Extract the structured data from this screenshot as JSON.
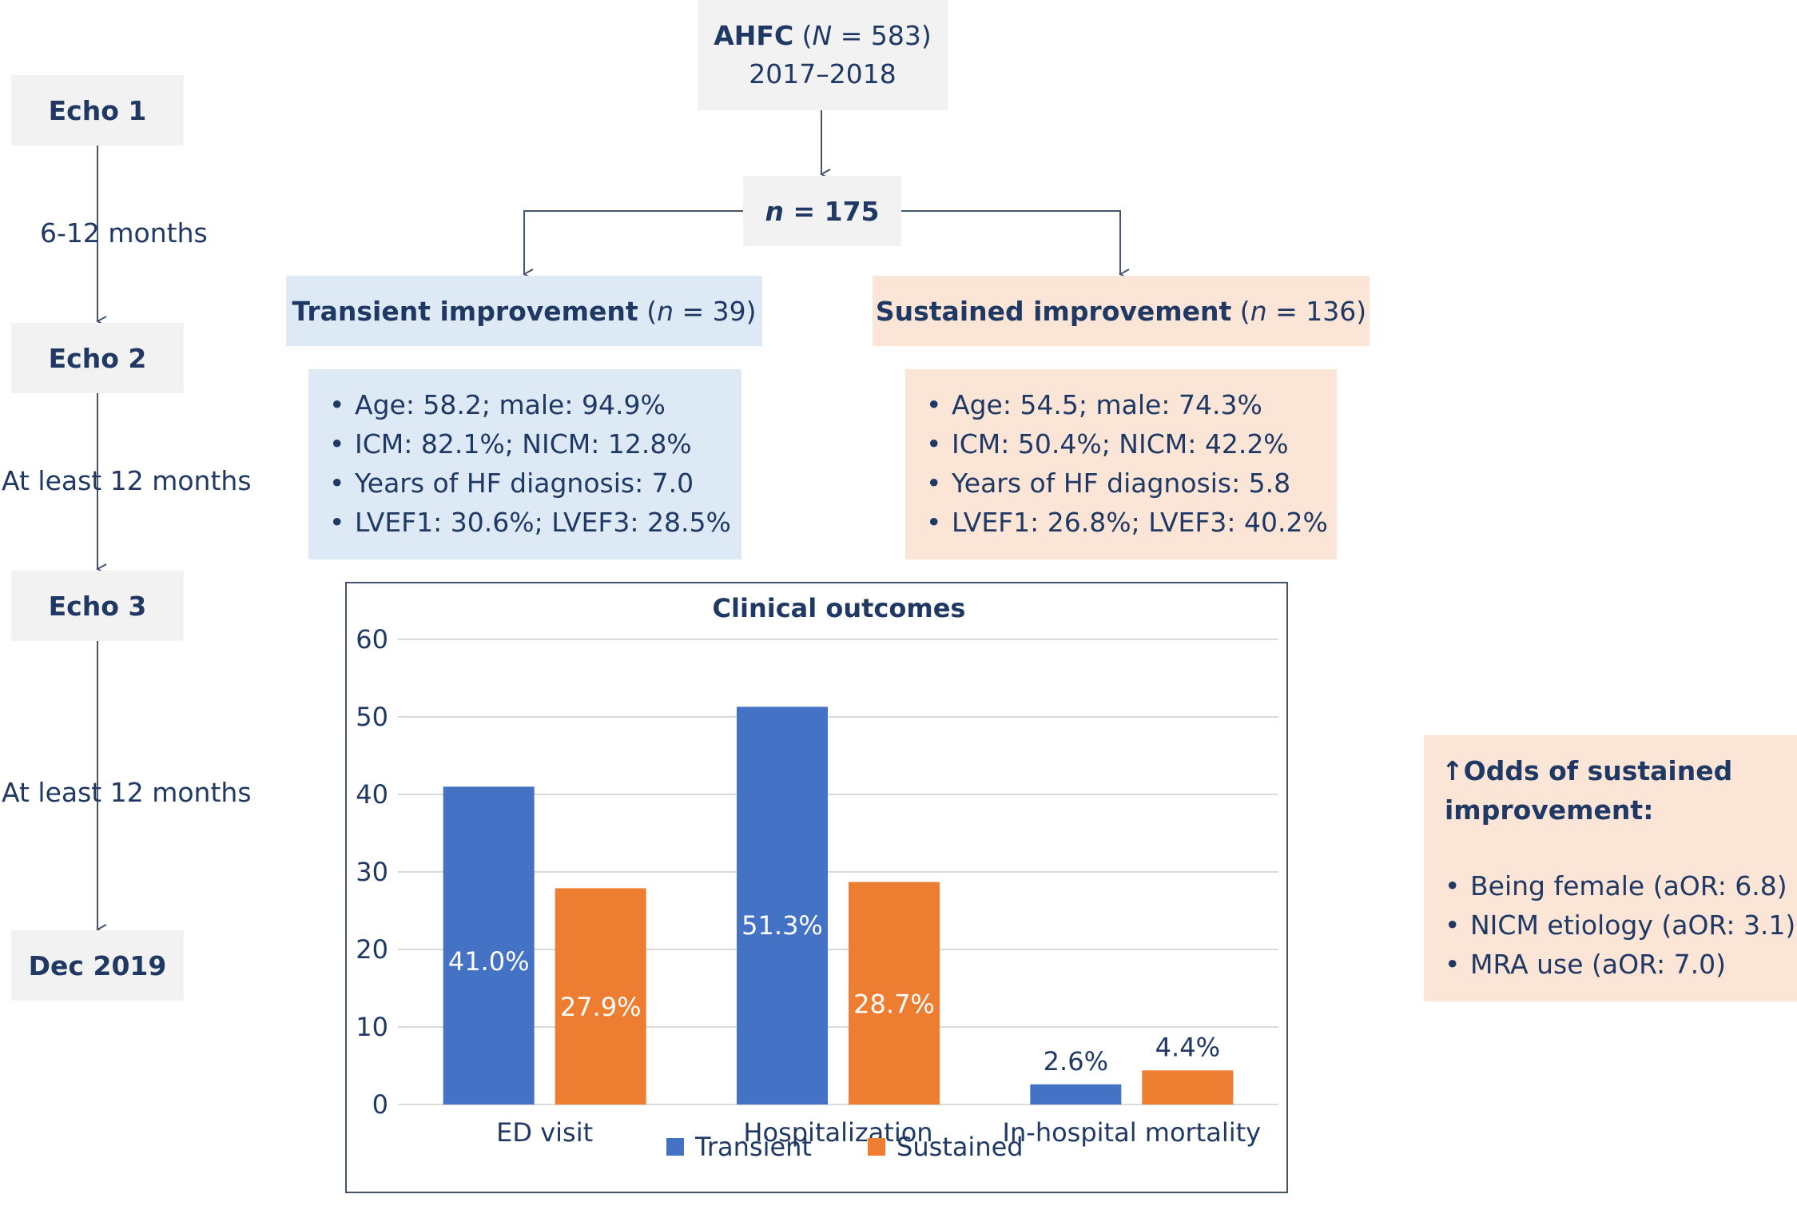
{
  "timeline": {
    "echo1": "Echo 1",
    "interval1": "6-12 months",
    "echo2": "Echo 2",
    "interval2": "At least 12 months",
    "echo3": "Echo 3",
    "interval3": "At least 12 months",
    "end": "Dec 2019"
  },
  "cohort": {
    "name": "AHFC",
    "n_label": "N",
    "n_value": "= 583)",
    "years": "2017–2018"
  },
  "subset": {
    "n_label": "n",
    "n_value": "= 175"
  },
  "groups": {
    "transient": {
      "title": "Transient improvement",
      "n_label": "n",
      "n_value": "= 39)",
      "bullets": [
        "Age: 58.2; male: 94.9%",
        "ICM: 82.1%; NICM: 12.8%",
        "Years of HF diagnosis: 7.0",
        "LVEF1: 30.6%; LVEF3: 28.5%"
      ]
    },
    "sustained": {
      "title": "Sustained improvement",
      "n_label": "n",
      "n_value": "= 136)",
      "bullets": [
        "Age: 54.5; male: 74.3%",
        "ICM: 50.4%; NICM: 42.2%",
        "Years of HF diagnosis: 5.8",
        "LVEF1: 26.8%; LVEF3: 40.2%"
      ]
    }
  },
  "odds": {
    "arrow": "↑",
    "title_line1": "Odds of sustained",
    "title_line2": "improvement:",
    "bullets": [
      "Being female (aOR: 6.8)",
      "NICM etiology (aOR: 3.1)",
      "MRA use (aOR: 7.0)"
    ]
  },
  "colors": {
    "transient": "#4472c4",
    "sustained": "#ed7d31",
    "text": "#1f3864"
  },
  "chart_data": {
    "type": "bar",
    "title": "Clinical outcomes",
    "categories": [
      "ED visit",
      "Hospitalization",
      "In-hospital mortality"
    ],
    "series": [
      {
        "name": "Transient",
        "values": [
          41.0,
          51.3,
          2.6
        ],
        "labels": [
          "41.0%",
          "51.3%",
          "2.6%"
        ]
      },
      {
        "name": "Sustained",
        "values": [
          27.9,
          28.7,
          4.4
        ],
        "labels": [
          "27.9%",
          "28.7%",
          "4.4%"
        ]
      }
    ],
    "ylim": [
      0,
      60
    ],
    "yticks": [
      "0",
      "10",
      "20",
      "30",
      "40",
      "50",
      "60"
    ],
    "grid": true,
    "legend": "bottom"
  }
}
